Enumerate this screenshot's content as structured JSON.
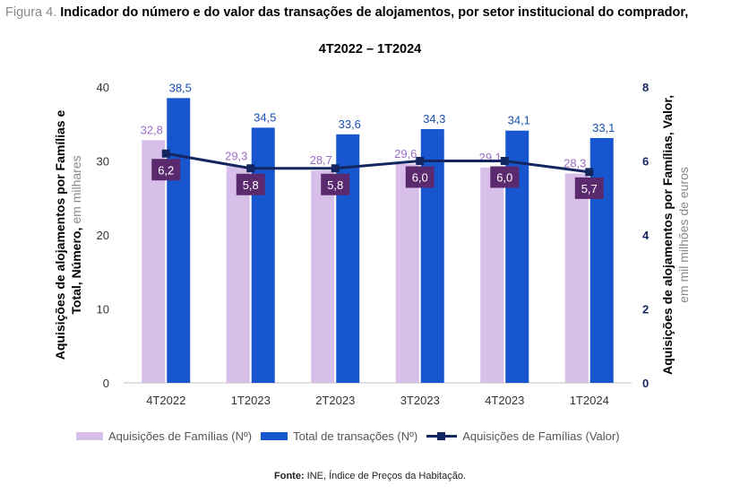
{
  "title": {
    "prefix": "Figura 4.",
    "main": "Indicador do número e do valor das transações de alojamentos, por setor institucional do comprador,",
    "period": "4T2022 – 1T2024"
  },
  "source": {
    "label": "Fonte:",
    "text": "INE, Índice de Preços da Habitação."
  },
  "legend": {
    "families_count": "Aquisições de Famílias (Nº)",
    "total_count": "Total de transações (Nº)",
    "families_value": "Aquisições de Famílias (Valor)"
  },
  "colors": {
    "families_bar": "#d8bfea",
    "total_bar": "#1756cf",
    "line": "#13265f",
    "label_box": "#5b2a6e",
    "families_label": "#9b6bc4",
    "total_label": "#1a4fb5",
    "axis": "#333333"
  },
  "chart_data": {
    "type": "bar",
    "categories": [
      "4T2022",
      "1T2023",
      "2T2023",
      "3T2023",
      "4T2023",
      "1T2024"
    ],
    "series": [
      {
        "name": "Aquisições de Famílias (Nº)",
        "axis": "left",
        "kind": "bar",
        "values": [
          32.8,
          29.3,
          28.7,
          29.6,
          29.1,
          28.3
        ],
        "labels": [
          "32,8",
          "29,3",
          "28,7",
          "29,6",
          "29,1",
          "28,3"
        ]
      },
      {
        "name": "Total de transações (Nº)",
        "axis": "left",
        "kind": "bar",
        "values": [
          38.5,
          34.5,
          33.6,
          34.3,
          34.1,
          33.1
        ],
        "labels": [
          "38,5",
          "34,5",
          "33,6",
          "34,3",
          "34,1",
          "33,1"
        ]
      },
      {
        "name": "Aquisições de Famílias (Valor)",
        "axis": "right",
        "kind": "line",
        "values": [
          6.2,
          5.8,
          5.8,
          6.0,
          6.0,
          5.7
        ],
        "labels": [
          "6,2",
          "5,8",
          "5,8",
          "6,0",
          "6,0",
          "5,7"
        ]
      }
    ],
    "ylim_left": [
      0,
      40
    ],
    "yticks_left": [
      0,
      10,
      20,
      30,
      40
    ],
    "ylim_right": [
      0,
      8
    ],
    "yticks_right": [
      0,
      2,
      4,
      6,
      8
    ],
    "ylabel_left_bold_1": "Aquisições de alojamentos por Famílias e",
    "ylabel_left_bold_2": "Total, Número,",
    "ylabel_left_light": "em milhares",
    "ylabel_right_bold": "Aquisições de alojamentos por Famílias, Valor,",
    "ylabel_right_light": "em mil milhões de euros",
    "legend_position": "bottom",
    "grid": false
  }
}
